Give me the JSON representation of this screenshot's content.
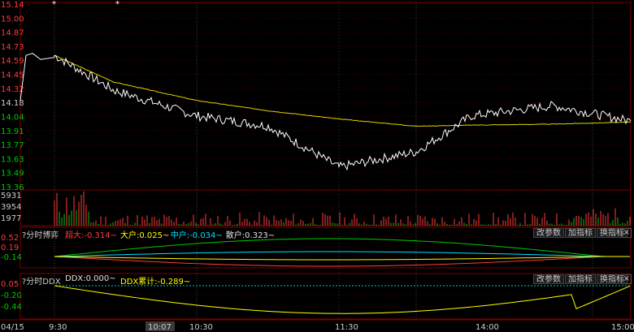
{
  "price_axis": {
    "labels": [
      {
        "text": "15.14",
        "color": "#ff3c3c"
      },
      {
        "text": "15.00",
        "color": "#ff3c3c"
      },
      {
        "text": "14.87",
        "color": "#ff3c3c"
      },
      {
        "text": "14.73",
        "color": "#ff3c3c"
      },
      {
        "text": "14.59",
        "color": "#ff3c3c"
      },
      {
        "text": "14.45",
        "color": "#ff3c3c"
      },
      {
        "text": "14.32",
        "color": "#ff3c3c"
      },
      {
        "text": "14.18",
        "color": "#cccccc"
      },
      {
        "text": "14.04",
        "color": "#00c800"
      },
      {
        "text": "13.91",
        "color": "#00c800"
      },
      {
        "text": "13.77",
        "color": "#00c800"
      },
      {
        "text": "13.63",
        "color": "#00c800"
      },
      {
        "text": "13.49",
        "color": "#00c800"
      },
      {
        "text": "13.36",
        "color": "#00c800"
      }
    ]
  },
  "volume_axis": {
    "labels": [
      "5931",
      "3954",
      "1977"
    ]
  },
  "ddx_panel": {
    "title": "?分时博弈",
    "legend": [
      {
        "text": "超大:-0.314~",
        "color": "#ff3c3c"
      },
      {
        "text": "大户:0.025~",
        "color": "#ffff00"
      },
      {
        "text": "中户:-0.034~",
        "color": "#00e0ff"
      },
      {
        "text": "散户:0.323~",
        "color": "#e0e0e0"
      }
    ],
    "buttons": [
      "改参数",
      "加指标",
      "换指标"
    ],
    "close": "×",
    "axis": [
      {
        "text": "0.52",
        "color": "#ff3c3c"
      },
      {
        "text": "0.19",
        "color": "#ff3c3c"
      },
      {
        "text": "-0.14",
        "color": "#00c800"
      }
    ]
  },
  "ddx2_panel": {
    "title": "?分时DDX",
    "legend": [
      {
        "text": "DDX:0.000~",
        "color": "#e0e0e0"
      },
      {
        "text": "DDX累计:-0.289~",
        "color": "#ffff00"
      }
    ],
    "buttons": [
      "改参数",
      "加指标",
      "换指标"
    ],
    "close": "×",
    "axis": [
      {
        "text": "0.05",
        "color": "#ff3c3c"
      },
      {
        "text": "-0.20",
        "color": "#00c800"
      },
      {
        "text": "-0.44",
        "color": "#00c800"
      }
    ]
  },
  "time_axis": {
    "labels": [
      "04/15",
      "9:30",
      "10:07",
      "10:30",
      "11:30",
      "14:00",
      "15:00"
    ],
    "highlight": "10:07"
  },
  "markers": [
    "*",
    "*"
  ],
  "colors": {
    "price_line": "#ffffff",
    "avg_line": "#e6d200",
    "up": "#ff3c3c",
    "down": "#00c800",
    "grid": "#3a0000",
    "border": "#7a0000"
  },
  "chart_data": {
    "type": "line",
    "title": "",
    "xlabel": "",
    "ylabel": "",
    "ylim": [
      13.36,
      15.14
    ],
    "x": [
      "9:30",
      "10:00",
      "10:30",
      "11:00",
      "11:30",
      "13:30",
      "14:00",
      "14:30",
      "15:00"
    ],
    "series": [
      {
        "values": [
          14.64,
          14.3,
          14.05,
          13.95,
          13.55,
          13.7,
          14.05,
          14.15,
          14.0
        ]
      },
      {
        "values": [
          14.64,
          14.38,
          14.2,
          14.1,
          14.02,
          13.95,
          13.96,
          13.97,
          13.99
        ]
      }
    ]
  }
}
